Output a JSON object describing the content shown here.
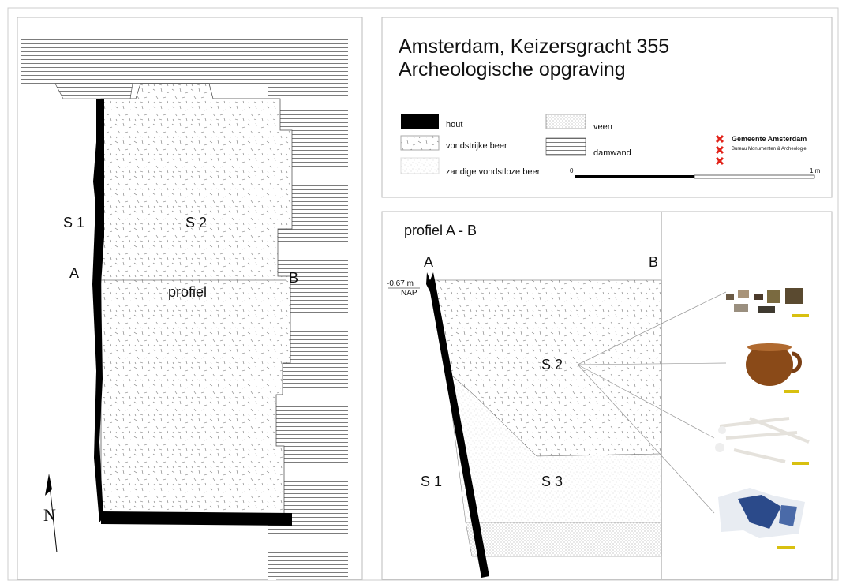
{
  "header": {
    "title": "Amsterdam, Keizersgracht 355",
    "subtitle": "Archeologische opgraving"
  },
  "legend": {
    "items": [
      {
        "label": "hout"
      },
      {
        "label": "vondstrijke beer"
      },
      {
        "label": "zandige vondstloze beer"
      },
      {
        "label": "veen"
      },
      {
        "label": "damwand"
      }
    ],
    "scale": {
      "start": "0",
      "end": "1 m"
    }
  },
  "organization": {
    "name": "Gemeente Amsterdam",
    "department": "Bureau Monumenten & Archeologie"
  },
  "plan": {
    "labels": [
      "S 1",
      "S 2",
      "A",
      "B",
      "profiel"
    ],
    "north": "N"
  },
  "profile": {
    "title": "profiel A - B",
    "labels": [
      "A",
      "B",
      "S 2",
      "S 1",
      "S 3"
    ],
    "level": "-0,67 m",
    "datum": "NAP"
  }
}
